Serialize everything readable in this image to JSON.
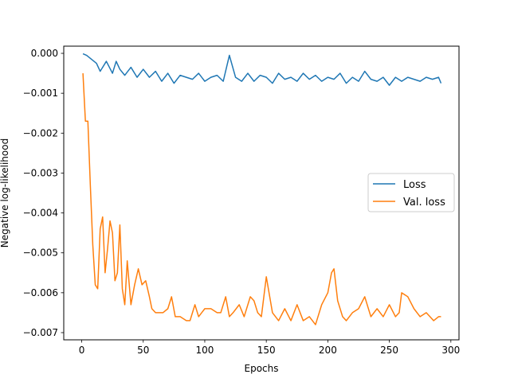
{
  "chart_data": {
    "type": "line",
    "title": "",
    "xlabel": "Epochs",
    "ylabel": "Negative log-likelihood",
    "xlim": [
      -14.6,
      306.6
    ],
    "ylim": [
      -0.00718,
      0.00018
    ],
    "xticks": [
      0,
      50,
      100,
      150,
      200,
      250,
      300
    ],
    "xtick_labels": [
      "0",
      "50",
      "100",
      "150",
      "200",
      "250",
      "300"
    ],
    "yticks": [
      0.0,
      -0.001,
      -0.002,
      -0.003,
      -0.004,
      -0.005,
      -0.006,
      -0.007
    ],
    "ytick_labels": [
      "0.000",
      "−0.001",
      "−0.002",
      "−0.003",
      "−0.004",
      "−0.005",
      "−0.006",
      "−0.007"
    ],
    "grid": false,
    "legend_position": "center-right",
    "series": [
      {
        "name": "Loss",
        "color": "#1f77b4",
        "x": [
          1,
          4,
          8,
          12,
          15,
          20,
          25,
          28,
          31,
          35,
          40,
          45,
          50,
          55,
          60,
          65,
          70,
          75,
          80,
          85,
          90,
          95,
          100,
          105,
          110,
          115,
          120,
          125,
          130,
          135,
          140,
          145,
          150,
          155,
          160,
          165,
          170,
          175,
          180,
          185,
          190,
          195,
          200,
          205,
          210,
          215,
          220,
          225,
          230,
          235,
          240,
          245,
          250,
          255,
          260,
          265,
          270,
          275,
          280,
          285,
          290,
          292
        ],
        "y": [
          -1e-05,
          -5e-05,
          -0.00015,
          -0.00025,
          -0.00045,
          -0.0002,
          -0.0005,
          -0.0002,
          -0.0004,
          -0.00055,
          -0.00035,
          -0.0006,
          -0.0004,
          -0.0006,
          -0.00045,
          -0.0007,
          -0.0005,
          -0.00075,
          -0.00055,
          -0.0006,
          -0.00065,
          -0.0005,
          -0.0007,
          -0.0006,
          -0.00055,
          -0.0007,
          -5e-05,
          -0.0006,
          -0.0007,
          -0.0005,
          -0.0007,
          -0.00055,
          -0.0006,
          -0.00075,
          -0.0005,
          -0.00065,
          -0.0006,
          -0.0007,
          -0.0005,
          -0.00065,
          -0.00055,
          -0.0007,
          -0.0006,
          -0.00065,
          -0.0005,
          -0.00075,
          -0.0006,
          -0.0007,
          -0.00045,
          -0.00065,
          -0.0007,
          -0.0006,
          -0.0008,
          -0.0006,
          -0.0007,
          -0.0006,
          -0.00065,
          -0.0007,
          -0.0006,
          -0.00065,
          -0.0006,
          -0.00075
        ]
      },
      {
        "name": "Val. loss",
        "color": "#ff7f0e",
        "x": [
          1,
          3,
          5,
          7,
          9,
          11,
          13,
          15,
          17,
          19,
          21,
          23,
          25,
          27,
          29,
          31,
          33,
          35,
          37,
          40,
          43,
          46,
          49,
          52,
          55,
          57,
          60,
          63,
          66,
          70,
          73,
          76,
          80,
          85,
          88,
          92,
          95,
          100,
          105,
          110,
          113,
          117,
          120,
          123,
          128,
          132,
          137,
          140,
          143,
          146,
          150,
          155,
          160,
          165,
          170,
          175,
          180,
          185,
          190,
          195,
          200,
          203,
          205,
          208,
          212,
          215,
          220,
          225,
          230,
          235,
          240,
          245,
          250,
          255,
          258,
          260,
          265,
          270,
          275,
          280,
          283,
          286,
          290,
          292
        ],
        "y": [
          -0.0005,
          -0.0017,
          -0.0017,
          -0.0033,
          -0.0048,
          -0.0058,
          -0.0059,
          -0.0044,
          -0.0041,
          -0.0055,
          -0.0049,
          -0.0042,
          -0.0045,
          -0.0057,
          -0.0055,
          -0.0043,
          -0.0059,
          -0.0063,
          -0.0052,
          -0.0063,
          -0.0058,
          -0.0054,
          -0.0058,
          -0.0057,
          -0.0061,
          -0.0064,
          -0.0065,
          -0.0065,
          -0.0065,
          -0.0064,
          -0.0061,
          -0.0066,
          -0.0066,
          -0.0067,
          -0.0067,
          -0.0063,
          -0.0066,
          -0.0064,
          -0.0064,
          -0.0065,
          -0.0065,
          -0.0061,
          -0.0066,
          -0.0065,
          -0.0063,
          -0.0066,
          -0.0061,
          -0.0062,
          -0.0065,
          -0.0066,
          -0.0056,
          -0.0065,
          -0.0067,
          -0.0064,
          -0.0067,
          -0.0063,
          -0.0067,
          -0.0066,
          -0.0068,
          -0.0063,
          -0.006,
          -0.0055,
          -0.0054,
          -0.0062,
          -0.0066,
          -0.0067,
          -0.0065,
          -0.0064,
          -0.0061,
          -0.0066,
          -0.0064,
          -0.0066,
          -0.0063,
          -0.0066,
          -0.0065,
          -0.006,
          -0.0061,
          -0.0064,
          -0.0066,
          -0.0065,
          -0.0066,
          -0.0067,
          -0.0066,
          -0.0066
        ]
      }
    ]
  }
}
